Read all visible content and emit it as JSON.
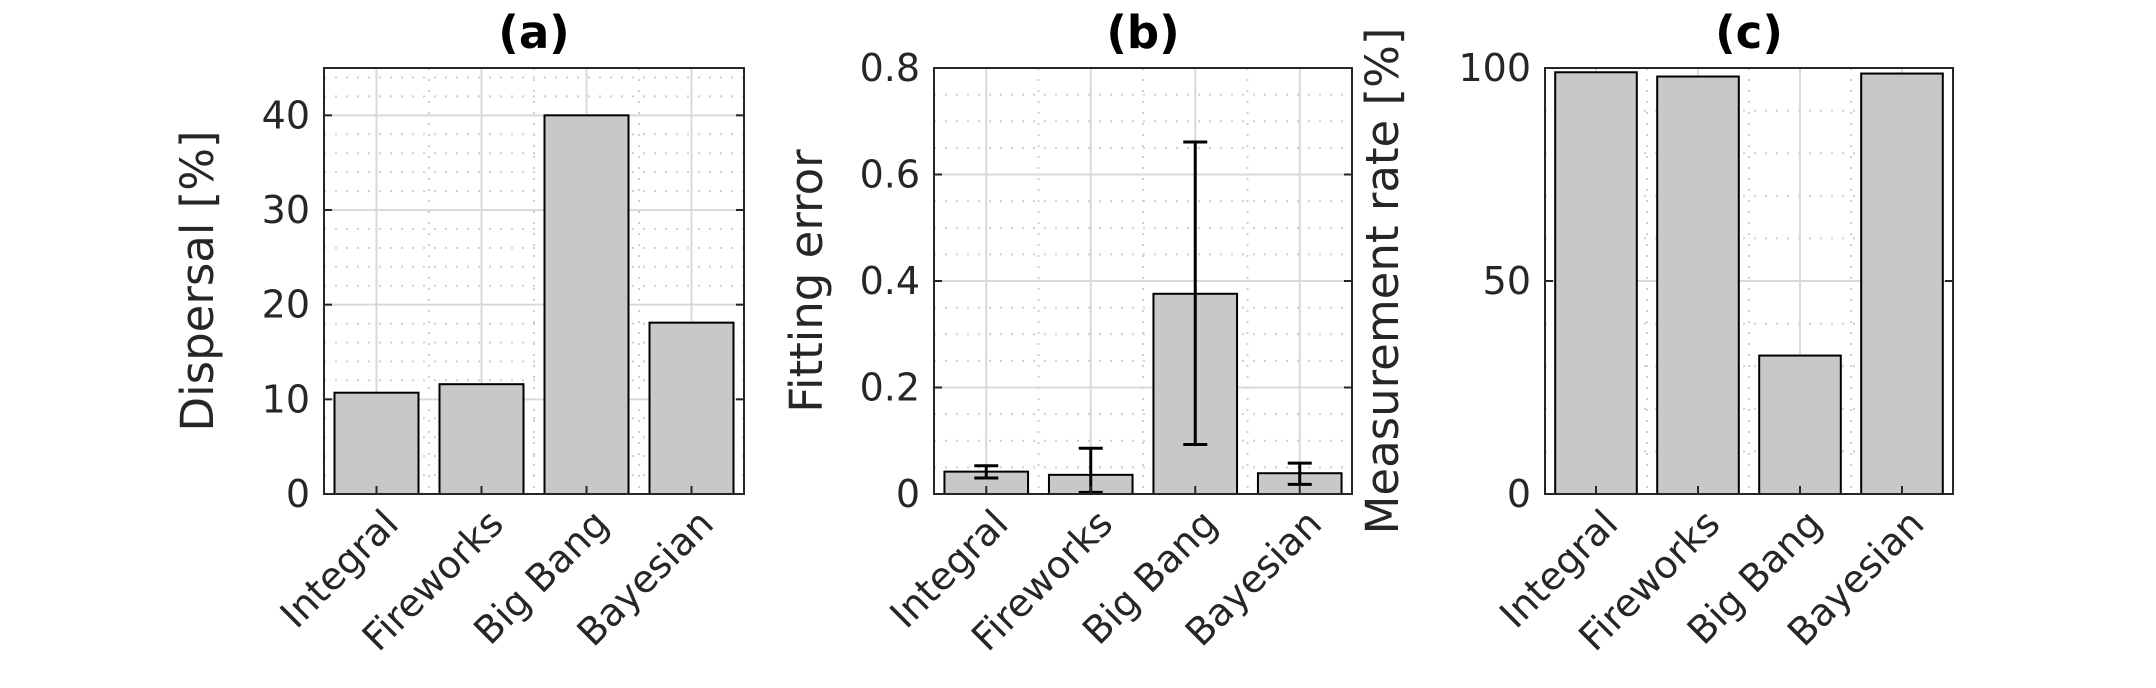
{
  "chart_data": [
    {
      "type": "bar",
      "title": "(a)",
      "ylabel": "Dispersal [%]",
      "xlabel": "",
      "categories": [
        "Integral",
        "Fireworks",
        "Big Bang",
        "Bayesian"
      ],
      "values": [
        10.7,
        11.6,
        40.0,
        18.1
      ],
      "ylim": [
        0,
        45
      ],
      "yticks": [
        0,
        10,
        20,
        30,
        40
      ],
      "ytick_labels": [
        "0",
        "10",
        "20",
        "30",
        "40"
      ],
      "yminor_step": 2,
      "grid": true
    },
    {
      "type": "bar",
      "title": "(b)",
      "ylabel": "Fitting error",
      "xlabel": "",
      "categories": [
        "Integral",
        "Fireworks",
        "Big Bang",
        "Bayesian"
      ],
      "values": [
        0.042,
        0.036,
        0.376,
        0.039
      ],
      "error_low": [
        0.03,
        0.003,
        0.093,
        0.018
      ],
      "error_high": [
        0.053,
        0.086,
        0.661,
        0.058
      ],
      "ylim": [
        0,
        0.8
      ],
      "yticks": [
        0,
        0.2,
        0.4,
        0.6,
        0.8
      ],
      "ytick_labels": [
        "0",
        "0.2",
        "0.4",
        "0.6",
        "0.8"
      ],
      "yminor_step": 0.05,
      "grid": true
    },
    {
      "type": "bar",
      "title": "(c)",
      "ylabel": "Measurement rate [%]",
      "xlabel": "",
      "categories": [
        "Integral",
        "Fireworks",
        "Big Bang",
        "Bayesian"
      ],
      "values": [
        99.0,
        98.0,
        32.5,
        98.7
      ],
      "ylim": [
        0,
        100
      ],
      "yticks": [
        0,
        50,
        100
      ],
      "ytick_labels": [
        "0",
        "50",
        "100"
      ],
      "yminor_step": 10,
      "grid": true
    }
  ]
}
